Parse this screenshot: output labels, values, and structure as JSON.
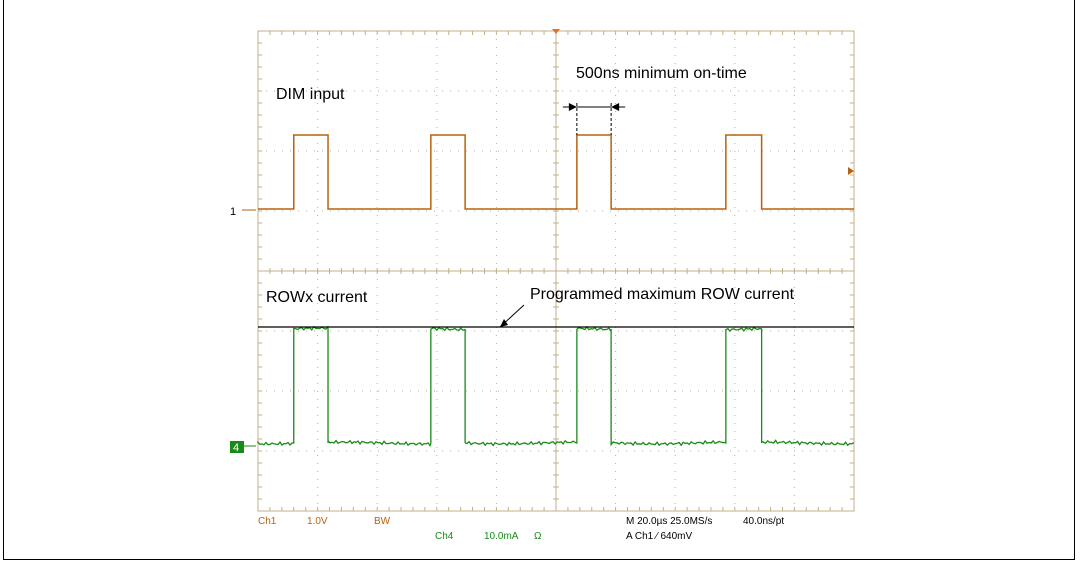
{
  "chart_data": {
    "type": "line",
    "title": "",
    "xlabel": "",
    "ylabel": "",
    "grid": true,
    "time_divisions": 10,
    "channels": [
      {
        "name": "DIM input",
        "channel_marker": "1",
        "color": "#b8620f",
        "x_edges": [
          1.2,
          2.35,
          5.8,
          6.95,
          10.7,
          11.85,
          15.7,
          16.9
        ],
        "levels": [
          0,
          1
        ],
        "label_positions": "upper half"
      },
      {
        "name": "ROWx current",
        "channel_marker": "4",
        "color": "#1a8a1a",
        "x_edges": [
          1.2,
          2.35,
          5.8,
          6.95,
          10.7,
          11.85,
          15.7,
          16.9
        ],
        "levels": [
          0,
          1
        ],
        "noisy": true
      }
    ],
    "annotations": {
      "min_on_time": "500ns minimum on-time",
      "max_current": "Programmed maximum ROW current"
    },
    "readouts": {
      "ch1": "Ch1",
      "ch1_scale": "1.0V",
      "bw": "BW",
      "ch4": "Ch4",
      "ch4_scale": "10.0mA",
      "ch4_coupling": "Ω",
      "timebase": "M 20.0µs 25.0MS/s",
      "resolution": "40.0ns/pt",
      "trigger": "A  Ch1  ∕  640mV"
    },
    "colors": {
      "grid": "#c0b088",
      "grid_dots": "#b9ad8a",
      "ch1": "#b8620f",
      "ch4": "#1a8a1a",
      "ref_line": "#000000",
      "trigger_marker": "#e87020"
    }
  }
}
